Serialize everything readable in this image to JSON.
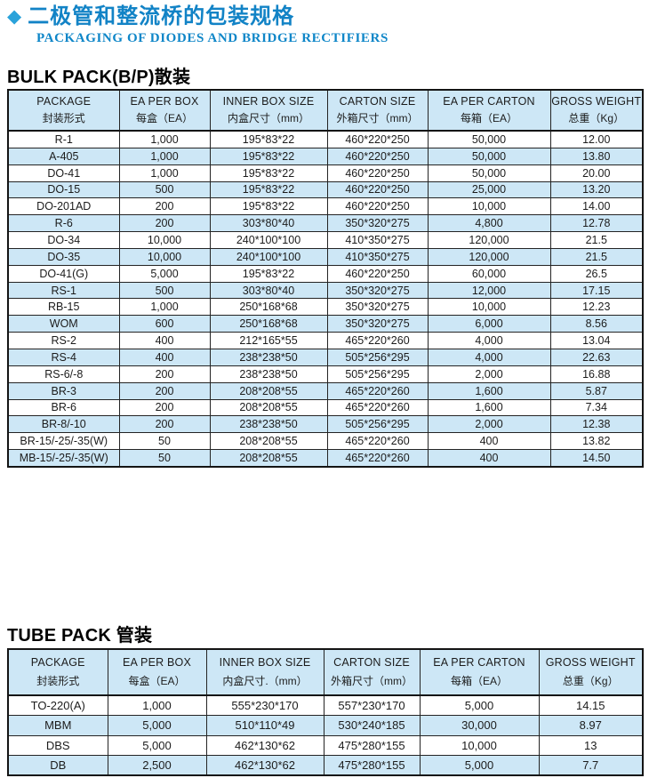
{
  "page": {
    "diamond_icon": "◆",
    "title_zh": "二极管和整流桥的包装规格",
    "title_en": "PACKAGING OF DIODES AND BRIDGE RECTIFIERS"
  },
  "colors": {
    "title_blue": "#1283c6",
    "subtitle_blue": "#0e86c8",
    "diamond_blue": "#2aa2da",
    "table_header_bg": "#cde7f6",
    "row_stripe_bg": "#cde7f6",
    "border": "#141414",
    "text": "#1c1c1c"
  },
  "bulk": {
    "heading": "BULK PACK(B/P)散装",
    "columns": [
      {
        "en": "PACKAGE",
        "zh": "封装形式"
      },
      {
        "en": "EA PER BOX",
        "zh": "每盒（EA）"
      },
      {
        "en": "INNER BOX SIZE",
        "zh": "内盒尺寸（mm）"
      },
      {
        "en": "CARTON SIZE",
        "zh": "外箱尺寸（mm）"
      },
      {
        "en": "EA PER CARTON",
        "zh": "每箱（EA）"
      },
      {
        "en": "GROSS WEIGHT",
        "zh": "总重（Kg）"
      }
    ],
    "rows": [
      [
        "R-1",
        "1,000",
        "195*83*22",
        "460*220*250",
        "50,000",
        "12.00"
      ],
      [
        "A-405",
        "1,000",
        "195*83*22",
        "460*220*250",
        "50,000",
        "13.80"
      ],
      [
        "DO-41",
        "1,000",
        "195*83*22",
        "460*220*250",
        "50,000",
        "20.00"
      ],
      [
        "DO-15",
        "500",
        "195*83*22",
        "460*220*250",
        "25,000",
        "13.20"
      ],
      [
        "DO-201AD",
        "200",
        "195*83*22",
        "460*220*250",
        "10,000",
        "14.00"
      ],
      [
        "R-6",
        "200",
        "303*80*40",
        "350*320*275",
        "4,800",
        "12.78"
      ],
      [
        "DO-34",
        "10,000",
        "240*100*100",
        "410*350*275",
        "120,000",
        "21.5"
      ],
      [
        "DO-35",
        "10,000",
        "240*100*100",
        "410*350*275",
        "120,000",
        "21.5"
      ],
      [
        "DO-41(G)",
        "5,000",
        "195*83*22",
        "460*220*250",
        "60,000",
        "26.5"
      ],
      [
        "RS-1",
        "500",
        "303*80*40",
        "350*320*275",
        "12,000",
        "17.15"
      ],
      [
        "RB-15",
        "1,000",
        "250*168*68",
        "350*320*275",
        "10,000",
        "12.23"
      ],
      [
        "WOM",
        "600",
        "250*168*68",
        "350*320*275",
        "6,000",
        "8.56"
      ],
      [
        "RS-2",
        "400",
        "212*165*55",
        "465*220*260",
        "4,000",
        "13.04"
      ],
      [
        "RS-4",
        "400",
        "238*238*50",
        "505*256*295",
        "4,000",
        "22.63"
      ],
      [
        "RS-6/-8",
        "200",
        "238*238*50",
        "505*256*295",
        "2,000",
        "16.88"
      ],
      [
        "BR-3",
        "200",
        "208*208*55",
        "465*220*260",
        "1,600",
        "5.87"
      ],
      [
        "BR-6",
        "200",
        "208*208*55",
        "465*220*260",
        "1,600",
        "7.34"
      ],
      [
        "BR-8/-10",
        "200",
        "238*238*50",
        "505*256*295",
        "2,000",
        "12.38"
      ],
      [
        "BR-15/-25/-35(W)",
        "50",
        "208*208*55",
        "465*220*260",
        "400",
        "13.82"
      ],
      [
        "MB-15/-25/-35(W)",
        "50",
        "208*208*55",
        "465*220*260",
        "400",
        "14.50"
      ]
    ]
  },
  "tube": {
    "heading": "TUBE PACK 管装",
    "columns": [
      {
        "en": "PACKAGE",
        "zh": "封装形式"
      },
      {
        "en": "EA PER BOX",
        "zh": "每盒（EA）"
      },
      {
        "en": "INNER BOX SIZE",
        "zh": "内盒尺寸.（mm）"
      },
      {
        "en": "CARTON SIZE",
        "zh": "外箱尺寸（mm）"
      },
      {
        "en": "EA PER CARTON",
        "zh": "每箱（EA）"
      },
      {
        "en": "GROSS WEIGHT",
        "zh": "总重（Kg）"
      }
    ],
    "rows": [
      [
        "TO-220(A)",
        "1,000",
        "555*230*170",
        "557*230*170",
        "5,000",
        "14.15"
      ],
      [
        "MBM",
        "5,000",
        "510*110*49",
        "530*240*185",
        "30,000",
        "8.97"
      ],
      [
        "DBS",
        "5,000",
        "462*130*62",
        "475*280*155",
        "10,000",
        "13"
      ],
      [
        "DB",
        "2,500",
        "462*130*62",
        "475*280*155",
        "5,000",
        "7.7"
      ]
    ]
  }
}
